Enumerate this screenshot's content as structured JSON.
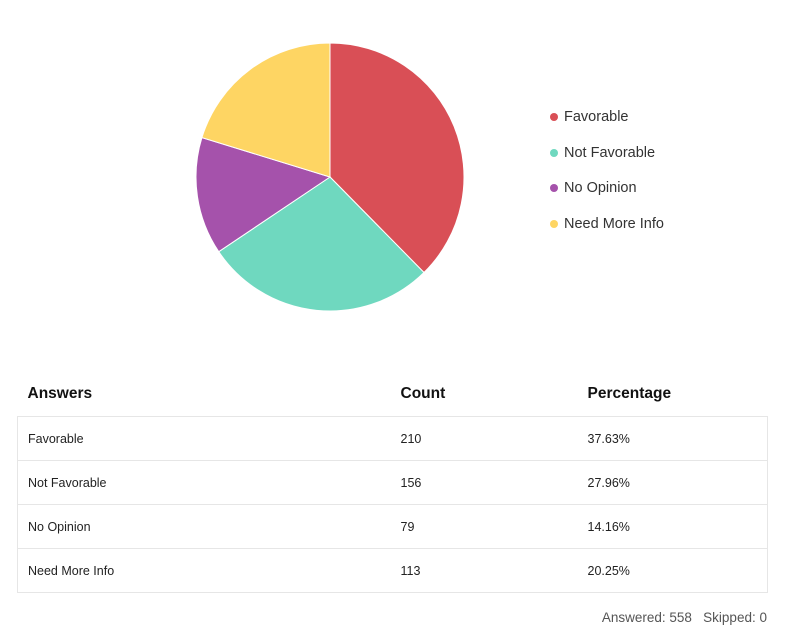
{
  "chart_data": {
    "type": "pie",
    "categories": [
      "Favorable",
      "Not Favorable",
      "No Opinion",
      "Need More Info"
    ],
    "values": [
      37.63,
      27.96,
      14.16,
      20.25
    ],
    "counts": [
      210,
      156,
      79,
      113
    ],
    "colors": [
      "#d94f56",
      "#6fd8bf",
      "#a552ab",
      "#fed563"
    ],
    "legend": "right",
    "title": ""
  },
  "table": {
    "headers": {
      "answers": "Answers",
      "count": "Count",
      "percentage": "Percentage"
    },
    "rows": [
      {
        "answer": "Favorable",
        "count": "210",
        "percentage": "37.63%"
      },
      {
        "answer": "Not Favorable",
        "count": "156",
        "percentage": "27.96%"
      },
      {
        "answer": "No Opinion",
        "count": "79",
        "percentage": "14.16%"
      },
      {
        "answer": "Need More Info",
        "count": "113",
        "percentage": "20.25%"
      }
    ]
  },
  "summary": {
    "answered_label": "Answered:",
    "answered_value": "558",
    "skipped_label": "Skipped:",
    "skipped_value": "0"
  }
}
